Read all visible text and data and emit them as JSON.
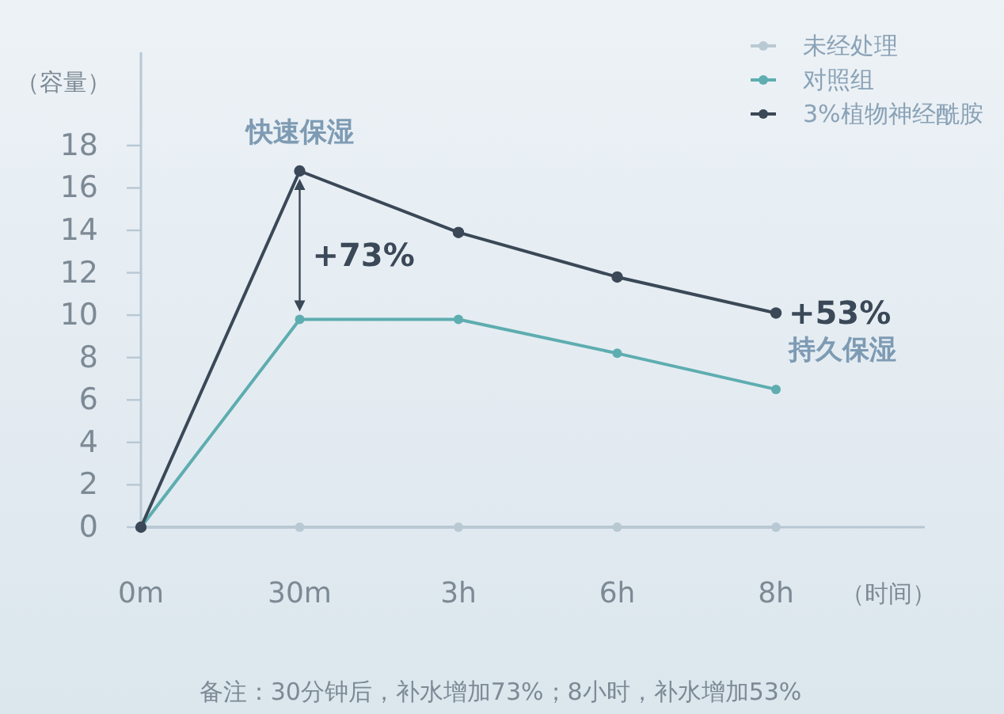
{
  "chart_data": {
    "type": "line",
    "categories": [
      "0m",
      "30m",
      "3h",
      "6h",
      "8h"
    ],
    "ylabel": "（容量）",
    "xlabel": "（时间）",
    "ylim": [
      0,
      22.4
    ],
    "yticks": [
      0,
      2,
      4,
      6,
      8,
      10,
      12,
      14,
      16,
      18
    ],
    "series": [
      {
        "name": "未经处理",
        "color": "#b9c9d4",
        "values": [
          0,
          0,
          0,
          0,
          0
        ]
      },
      {
        "name": "对照组",
        "color": "#5eadb0",
        "values": [
          0,
          9.8,
          9.8,
          8.2,
          6.5
        ]
      },
      {
        "name": "3%植物神经酰胺",
        "color": "#3a4857",
        "values": [
          0,
          16.8,
          13.9,
          11.8,
          10.1
        ]
      }
    ],
    "marker": "circle",
    "line_style": "solid",
    "legend": "top right",
    "annotations": [
      {
        "text": "快速保湿",
        "x": "30m",
        "y": 16.8
      },
      {
        "text": "+73%",
        "x": "30m",
        "y": 9.8
      },
      {
        "text": "+53%",
        "x": "8h",
        "y": 10.1
      },
      {
        "text": "持久保湿",
        "x": "8h",
        "y": 10.1
      },
      "备注：30分钟后，补水增加73%；8小时，补水增加53%"
    ]
  }
}
